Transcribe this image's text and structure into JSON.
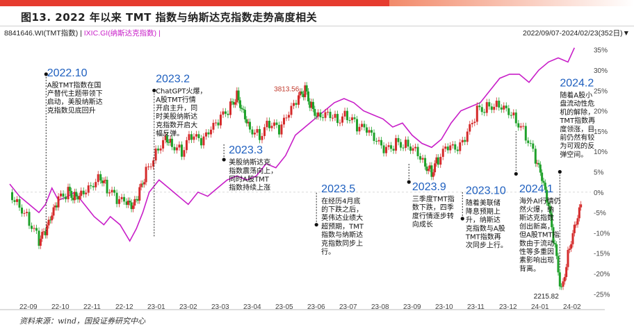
{
  "figure": {
    "title": "图13. 2022 年以来 TMT 指数与纳斯达克指数走势高度相关",
    "legend_tmt": "8841646.WI(TMT指数) |",
    "legend_ixic": "IXIC.GI(纳斯达克指数) |",
    "date_range": "2022/09/07-2024/02/23(352日)▼",
    "source": "资料来源：wind，国投证券研究中心"
  },
  "chart_data": {
    "type": "line",
    "x_ticks": [
      "22-09",
      "22-10",
      "22-11",
      "22-12",
      "23-01",
      "23-02",
      "23-03",
      "23-04",
      "23-05",
      "23-06",
      "23-07",
      "23-08",
      "23-09",
      "23-10",
      "23-11",
      "23-12",
      "24-01",
      "24-02"
    ],
    "y_ticks": [
      "35%",
      "30%",
      "25%",
      "20%",
      "15%",
      "10%",
      "5%",
      "0%",
      "-5%",
      "-10%",
      "-15%",
      "-20%",
      "-25%"
    ],
    "ylim": [
      -27,
      37
    ],
    "xlim": [
      0,
      17.8
    ],
    "series": [
      {
        "name": "8841646.WI(TMT指数)",
        "color": "#1fa12a",
        "style": "candlestick",
        "points": [
          [
            0,
            0
          ],
          [
            0.3,
            -3
          ],
          [
            0.6,
            -7
          ],
          [
            0.9,
            -12
          ],
          [
            1.1,
            -10
          ],
          [
            1.3,
            -6
          ],
          [
            1.5,
            -2
          ],
          [
            1.8,
            0
          ],
          [
            2.0,
            -1
          ],
          [
            2.2,
            0
          ],
          [
            2.5,
            2
          ],
          [
            2.8,
            4
          ],
          [
            3.0,
            1
          ],
          [
            3.3,
            -2
          ],
          [
            3.6,
            -3
          ],
          [
            3.8,
            -4
          ],
          [
            4.0,
            0
          ],
          [
            4.2,
            5
          ],
          [
            4.5,
            10
          ],
          [
            4.8,
            14
          ],
          [
            5.0,
            12
          ],
          [
            5.3,
            10
          ],
          [
            5.6,
            14
          ],
          [
            5.9,
            12
          ],
          [
            6.2,
            15
          ],
          [
            6.5,
            18
          ],
          [
            6.8,
            21
          ],
          [
            7.0,
            24
          ],
          [
            7.2,
            20
          ],
          [
            7.4,
            16
          ],
          [
            7.7,
            14
          ],
          [
            8.0,
            17
          ],
          [
            8.3,
            15
          ],
          [
            8.6,
            19
          ],
          [
            8.9,
            23
          ],
          [
            9.1,
            25
          ],
          [
            9.3,
            21
          ],
          [
            9.5,
            19
          ],
          [
            9.8,
            20
          ],
          [
            10.1,
            18
          ],
          [
            10.4,
            19
          ],
          [
            10.7,
            16
          ],
          [
            11.0,
            15
          ],
          [
            11.3,
            12
          ],
          [
            11.6,
            10
          ],
          [
            11.9,
            12
          ],
          [
            12.2,
            12
          ],
          [
            12.5,
            11
          ],
          [
            12.8,
            7
          ],
          [
            13.0,
            5
          ],
          [
            13.2,
            8
          ],
          [
            13.5,
            11
          ],
          [
            13.8,
            10
          ],
          [
            14.1,
            14
          ],
          [
            14.4,
            20
          ],
          [
            14.7,
            21
          ],
          [
            15.0,
            22
          ],
          [
            15.3,
            21
          ],
          [
            15.6,
            18
          ],
          [
            15.9,
            14
          ],
          [
            16.2,
            8
          ],
          [
            16.4,
            3
          ],
          [
            16.6,
            -4
          ],
          [
            16.8,
            -14
          ],
          [
            17.0,
            -24.5
          ],
          [
            17.2,
            -15
          ],
          [
            17.4,
            -8
          ],
          [
            17.6,
            -3
          ]
        ]
      },
      {
        "name": "IXIC.GI(纳斯达克指数)",
        "color": "#c81ec8",
        "style": "line",
        "points": [
          [
            0,
            2
          ],
          [
            0.3,
            -1
          ],
          [
            0.6,
            -3
          ],
          [
            0.9,
            -5
          ],
          [
            1.1,
            -3
          ],
          [
            1.3,
            1
          ],
          [
            1.5,
            -2
          ],
          [
            1.8,
            -1
          ],
          [
            2.0,
            0
          ],
          [
            2.3,
            -3
          ],
          [
            2.6,
            -6
          ],
          [
            2.9,
            -8
          ],
          [
            3.1,
            -6
          ],
          [
            3.4,
            -8
          ],
          [
            3.7,
            -12
          ],
          [
            3.9,
            -9
          ],
          [
            4.1,
            -5
          ],
          [
            4.3,
            0
          ],
          [
            4.6,
            3
          ],
          [
            4.9,
            1
          ],
          [
            5.2,
            -1
          ],
          [
            5.5,
            -3
          ],
          [
            5.8,
            0
          ],
          [
            6.1,
            -1
          ],
          [
            6.4,
            1
          ],
          [
            6.7,
            3
          ],
          [
            7.0,
            4
          ],
          [
            7.3,
            3
          ],
          [
            7.6,
            4
          ],
          [
            7.9,
            7
          ],
          [
            8.2,
            6
          ],
          [
            8.5,
            9
          ],
          [
            8.8,
            14
          ],
          [
            9.1,
            16
          ],
          [
            9.4,
            18
          ],
          [
            9.7,
            20
          ],
          [
            10.0,
            22
          ],
          [
            10.3,
            23
          ],
          [
            10.6,
            22
          ],
          [
            10.9,
            20
          ],
          [
            11.2,
            19
          ],
          [
            11.5,
            18
          ],
          [
            11.8,
            16
          ],
          [
            12.1,
            17
          ],
          [
            12.4,
            14
          ],
          [
            12.7,
            12
          ],
          [
            13.0,
            11
          ],
          [
            13.3,
            13
          ],
          [
            13.6,
            17
          ],
          [
            13.9,
            20
          ],
          [
            14.2,
            21
          ],
          [
            14.5,
            22
          ],
          [
            14.8,
            25
          ],
          [
            15.1,
            28
          ],
          [
            15.4,
            29
          ],
          [
            15.7,
            29
          ],
          [
            16.0,
            27
          ],
          [
            16.3,
            30
          ],
          [
            16.6,
            32
          ],
          [
            16.9,
            33
          ],
          [
            17.2,
            32
          ],
          [
            17.4,
            35.5
          ]
        ]
      }
    ],
    "labels": [
      {
        "text": "3813.56",
        "x": 9.0,
        "y": 25.5,
        "color": "#c0392b"
      },
      {
        "text": "2215.82",
        "x": 17.0,
        "y": -25.5,
        "color": "#222222"
      }
    ],
    "annotations": [
      {
        "head": "2022.10",
        "x": 1.15,
        "y": 28.5,
        "lines": [
          "A股TMT指数在国",
          "产替代主题带领下",
          "启动，美股纳斯达",
          "克指数见底回升"
        ]
      },
      {
        "head": "2023.2",
        "x": 4.5,
        "y": 27,
        "lines": [
          "ChatGPT火爆，",
          "A股TMT行情",
          "开启主升，同",
          "时美股纳斯达",
          "克指数开启大",
          "幅反弹。"
        ]
      },
      {
        "head": "2023.3",
        "x": 6.75,
        "y": 9.5,
        "lines": [
          "美股纳斯达克",
          "指数震荡向上，",
          "同时A股TMT",
          "指数持续上涨"
        ]
      },
      {
        "head": "2023.5",
        "x": 9.6,
        "y": 0,
        "lines": [
          "在经历4月底",
          "的下跌之后，",
          "英伟达业绩大",
          "超预期，TMT",
          "指数与纳斯达",
          "克指数同步上",
          "行。"
        ]
      },
      {
        "head": "2023.9",
        "x": 12.4,
        "y": 0.5,
        "lines": [
          "三季度TMT指",
          "数下跌，四季",
          "度行情逐步转",
          "向成长"
        ]
      },
      {
        "head": "2023.10",
        "x": 14.05,
        "y": -0.5,
        "lines": [
          "随着美联储",
          "降息预期上",
          "升，纳斯达",
          "克指数与A股",
          "TMT指数再",
          "次同步上行。"
        ]
      },
      {
        "head": "2024.1",
        "x": 15.7,
        "y": 0,
        "lines": [
          "海外AI行情仍",
          "然火爆，纳",
          "斯达克指数",
          "创出新高，",
          "但A股TMT指",
          "数由于流动",
          "性等多重因",
          "素影响出现",
          "背离。"
        ]
      },
      {
        "head": "2024.2",
        "x": 16.95,
        "y": 26,
        "lines": [
          "随着A股小",
          "盘流动性危",
          "机的解除，",
          "TMT指数再",
          "度领涨，目",
          "前仍然有较",
          "为可观的反",
          "弹空间。"
        ]
      }
    ],
    "markers": [
      {
        "x": 1.12,
        "y": 29,
        "y_to": -10
      },
      {
        "x": 4.45,
        "y": 25,
        "y_to": -11
      },
      {
        "x": 6.6,
        "y": 8,
        "y_to": 12
      },
      {
        "x": 9.45,
        "y": -8,
        "y_to": 0
      },
      {
        "x": 12.3,
        "y": 2.5,
        "y_to": 7
      },
      {
        "x": 13.95,
        "y": -6.5,
        "y_to": 0
      },
      {
        "x": 15.6,
        "y": 4.5,
        "y_to": 15
      },
      {
        "x": 16.95,
        "y": 5,
        "y_to": -19
      }
    ]
  }
}
